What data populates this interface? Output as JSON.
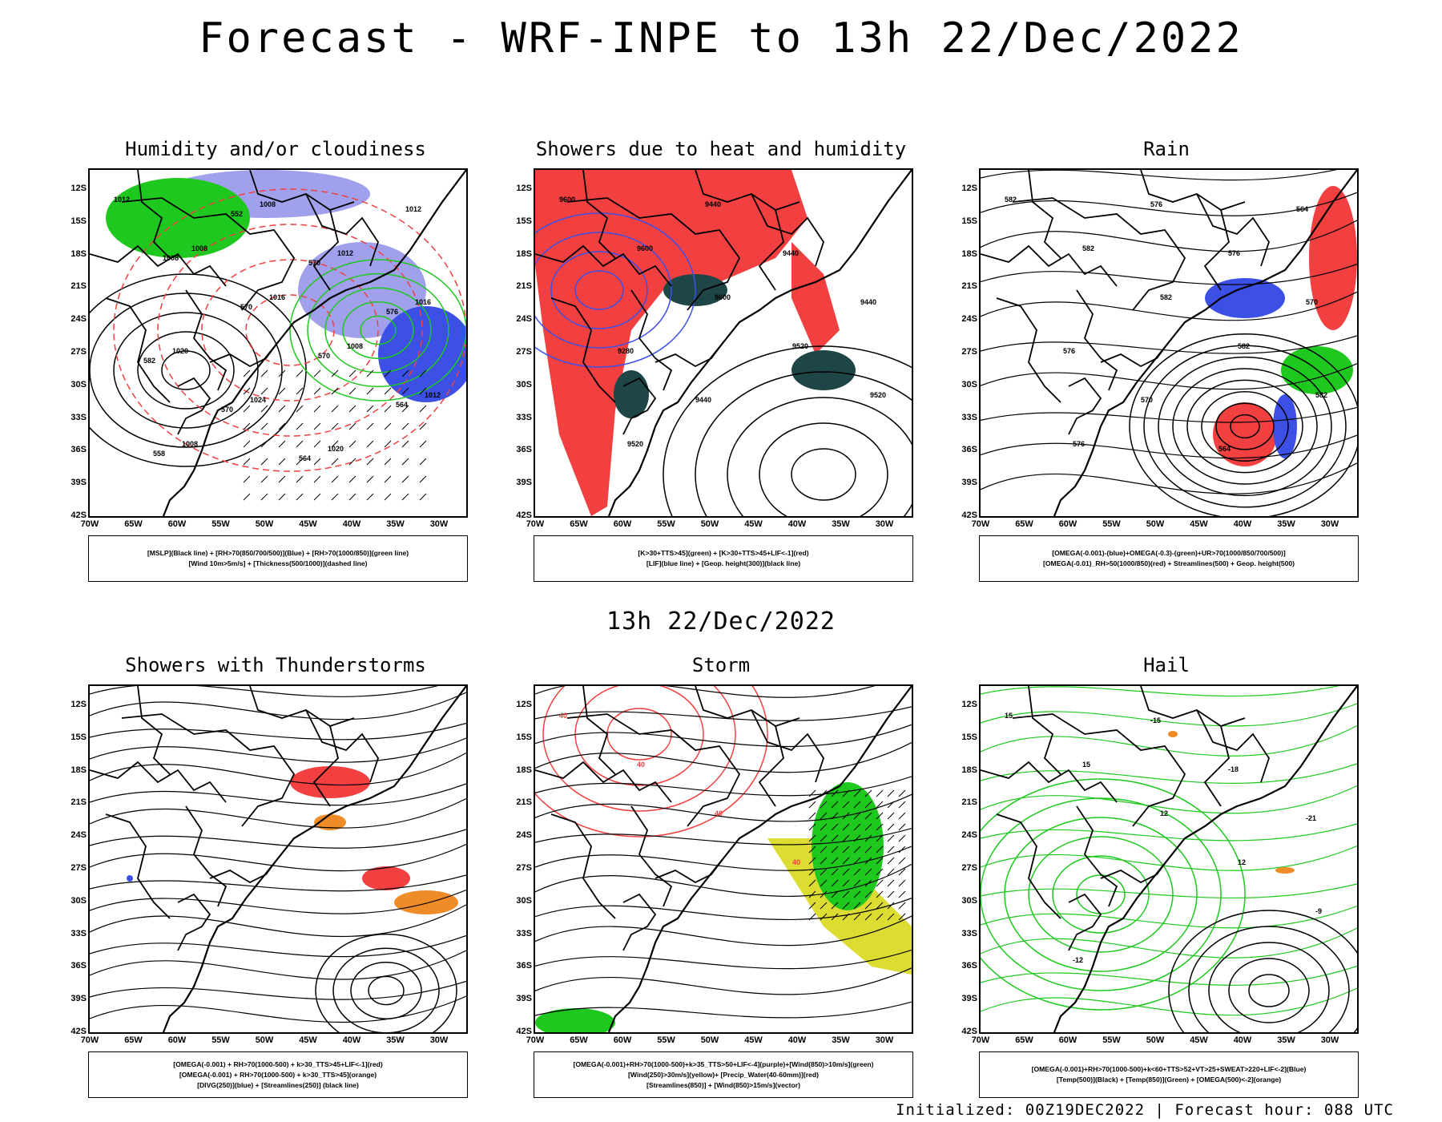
{
  "title": "Forecast - WRF-INPE to 13h 22/Dec/2022",
  "subtitle": "13h 22/Dec/2022",
  "footer": "Initialized: 00Z19DEC2022 | Forecast hour: 088 UTC",
  "lat_labels": [
    "12S",
    "15S",
    "18S",
    "21S",
    "24S",
    "27S",
    "30S",
    "33S",
    "36S",
    "39S",
    "42S"
  ],
  "lon_labels": [
    "70W",
    "65W",
    "60W",
    "55W",
    "50W",
    "45W",
    "40W",
    "35W",
    "30W"
  ],
  "colors": {
    "red": "#f24040",
    "blue": "#3c50e6",
    "green": "#1ec81e",
    "lavender": "#a0a0ec",
    "dark-teal": "#1e4646",
    "yellow": "#dcdc32",
    "orange": "#f08c28"
  },
  "panels": [
    {
      "title": "Humidity and/or cloudiness",
      "legend": [
        "[MSLP](Black line) + [RH>70(850/700/500)](Blue) + [RH>70(1000/850)](green line)",
        "[Wind 10m>5m/s] + [Thickness(500/1000)](dashed line)"
      ],
      "contour_labels": [
        "1012",
        "1008",
        "1016",
        "1008",
        "1012",
        "1008",
        "1008",
        "1012",
        "1016",
        "1020",
        "1024",
        "1020",
        "1012",
        "1008",
        "570",
        "570",
        "564",
        "558",
        "552",
        "570",
        "576",
        "582",
        "570",
        "564"
      ]
    },
    {
      "title": "Showers due to heat and humidity",
      "legend": [
        "[K>30+TTS>45](green) + [K>30+TTS>45+LIF<-1](red)",
        "[LIF](blue line) + [Geop. height(300)](black line)"
      ],
      "contour_labels": [
        "9600",
        "9600",
        "9600",
        "9520",
        "9520",
        "9520",
        "9440",
        "9440",
        "9440",
        "9280",
        "9440"
      ]
    },
    {
      "title": "Rain",
      "legend": [
        "[OMEGA(-0.001)-(blue)+OMEGA(-0.3)-(green)+UR>70(1000/850/700/500)]",
        "[OMEGA(-0.01)_RH>50(1000/850)(red) + Streamlines(500) + Geop. height(500)"
      ],
      "contour_labels": [
        "582",
        "582",
        "582",
        "582",
        "582",
        "576",
        "576",
        "576",
        "570",
        "576",
        "570",
        "564",
        "564"
      ]
    },
    {
      "title": "Showers with Thunderstorms",
      "legend": [
        "[OMEGA(-0.001) + RH>70(1000-500) + k>30_TTS>45+LIF<-1](red)",
        "[OMEGA(-0.001) + RH>70(1000-500) + k>30_TTS>45](orange)",
        "[DIVG(250)](blue) + [Streamlines(250)] (black line)"
      ],
      "contour_labels": []
    },
    {
      "title": "Storm",
      "legend": [
        "[OMEGA(-0.001)+RH>70(1000-500)+k>35_TTS>50+LIF<-4](purple)+[Wind(850)>10m/s](green)",
        "[Wind(250)>30m/s](yellow)+ [Precip_Water(40-60mm)](red)",
        "[Streamlines(850)] + [Wind(850)>15m/s](vector)"
      ],
      "contour_labels": [
        "40",
        "40",
        "40",
        "40"
      ]
    },
    {
      "title": "Hail",
      "legend": [
        "[OMEGA(-0.001)+RH>70(1000-500)+k<60+TTS>52+VT>25+SWEAT>220+LIF<-2](Blue)",
        "[Temp(500)](Black) + [Temp(850)](Green) + [OMEGA(500)<-2](orange)"
      ],
      "contour_labels": [
        "15",
        "15",
        "12",
        "12",
        "-9",
        "-12",
        "-15",
        "-18",
        "-21"
      ]
    }
  ]
}
